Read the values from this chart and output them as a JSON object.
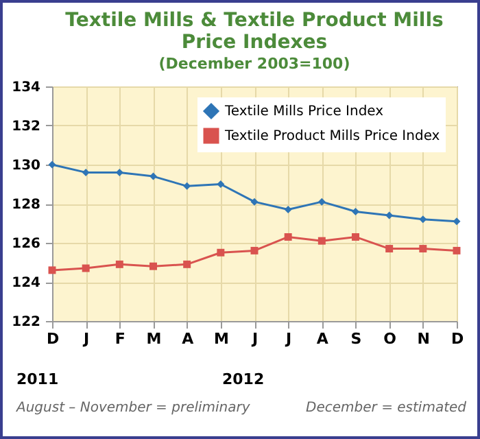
{
  "chart_data": {
    "type": "line",
    "title": "Textile Mills & Textile Product Mills Price Indexes",
    "subtitle": "(December 2003=100)",
    "categories": [
      "D",
      "J",
      "F",
      "M",
      "A",
      "M",
      "J",
      "J",
      "A",
      "S",
      "O",
      "N",
      "D"
    ],
    "series": [
      {
        "name": "Textile Mills Price Index",
        "color": "#2e75b6",
        "marker": "diamond",
        "values": [
          130.0,
          129.6,
          129.6,
          129.4,
          128.9,
          129.0,
          128.1,
          127.7,
          128.1,
          127.6,
          127.4,
          127.2,
          127.1
        ]
      },
      {
        "name": "Textile Product Mills Price Index",
        "color": "#d9534f",
        "marker": "square",
        "values": [
          124.6,
          124.7,
          124.9,
          124.8,
          124.9,
          125.5,
          125.6,
          126.3,
          126.1,
          126.3,
          125.7,
          125.7,
          125.6
        ]
      }
    ],
    "ylim": [
      122,
      134
    ],
    "yticks": [
      122,
      124,
      126,
      128,
      130,
      132,
      134
    ],
    "grid": true,
    "legend": "top right",
    "line_style": "solid",
    "annotations": [
      "2011",
      "2012",
      "August – November = preliminary",
      "December = estimated"
    ]
  }
}
